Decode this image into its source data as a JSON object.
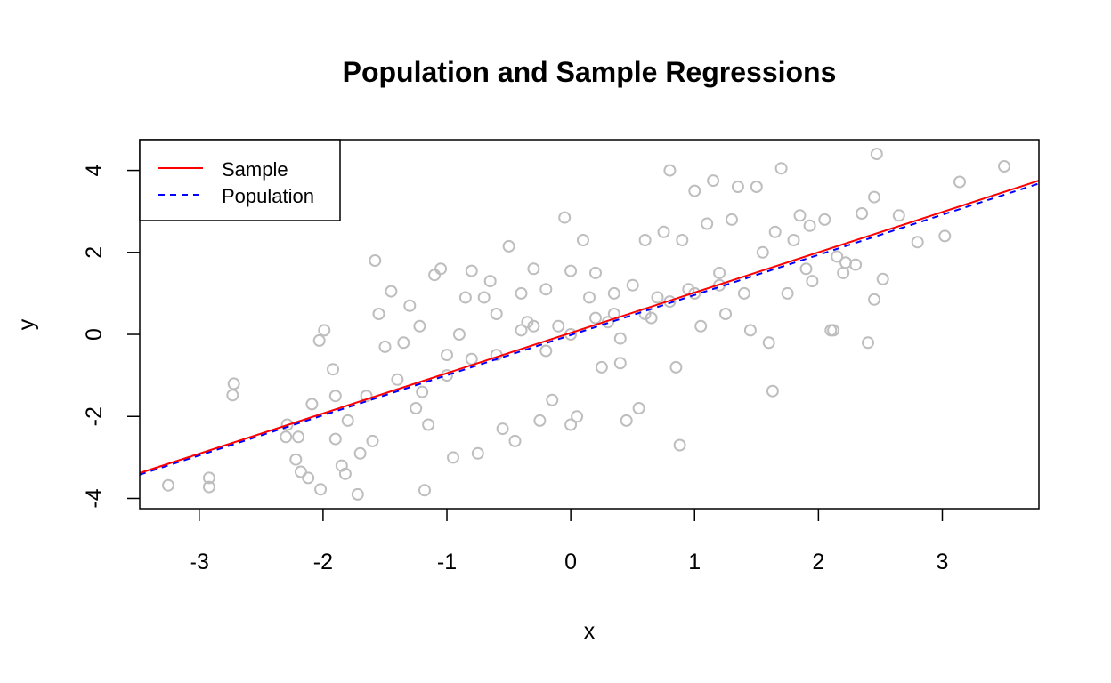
{
  "chart_data": {
    "type": "scatter",
    "title": "Population and Sample Regressions",
    "xlabel": "x",
    "ylabel": "y",
    "xlim": [
      -3.48,
      3.78
    ],
    "ylim": [
      -4.25,
      4.75
    ],
    "x_ticks": [
      -3,
      -2,
      -1,
      0,
      1,
      2,
      3
    ],
    "x_tick_labels": [
      "-3",
      "-2",
      "-1",
      "0",
      "1",
      "2",
      "3"
    ],
    "y_ticks": [
      -4,
      -2,
      0,
      2,
      4
    ],
    "y_tick_labels": [
      "-4",
      "-2",
      "0",
      "2",
      "4"
    ],
    "grid": false,
    "legend_position": "top-left",
    "legend": [
      {
        "label": "Sample",
        "color": "#ff0000",
        "style": "solid"
      },
      {
        "label": "Population",
        "color": "#0000ff",
        "style": "dashed"
      }
    ],
    "point_color": "#bebebe",
    "point_count_approx": 1000,
    "lines": [
      {
        "name": "Sample",
        "color": "#ff0000",
        "style": "solid",
        "points": [
          [
            -3.48,
            -3.38
          ],
          [
            3.78,
            3.75
          ]
        ]
      },
      {
        "name": "Population",
        "color": "#0000ff",
        "style": "dashed",
        "points": [
          [
            -3.48,
            -3.42
          ],
          [
            3.78,
            3.68
          ]
        ]
      }
    ],
    "points": [
      [
        -3.25,
        -3.68
      ],
      [
        -2.92,
        -3.72
      ],
      [
        -2.92,
        -3.5
      ],
      [
        -2.72,
        -1.2
      ],
      [
        -2.73,
        -1.48
      ],
      [
        -2.29,
        -2.2
      ],
      [
        -2.3,
        -2.5
      ],
      [
        -2.22,
        -3.05
      ],
      [
        -2.18,
        -3.35
      ],
      [
        -2.2,
        -2.5
      ],
      [
        -2.12,
        -3.5
      ],
      [
        -2.09,
        -1.7
      ],
      [
        -2.02,
        -3.78
      ],
      [
        -2.03,
        -0.15
      ],
      [
        -1.99,
        0.1
      ],
      [
        -1.92,
        -0.85
      ],
      [
        -1.9,
        -1.5
      ],
      [
        -1.9,
        -2.55
      ],
      [
        -1.85,
        -3.2
      ],
      [
        -1.82,
        -3.4
      ],
      [
        -1.8,
        -2.1
      ],
      [
        -1.72,
        -3.9
      ],
      [
        -1.7,
        -2.9
      ],
      [
        -1.65,
        -1.5
      ],
      [
        -1.6,
        -2.6
      ],
      [
        -1.58,
        1.8
      ],
      [
        -1.55,
        0.5
      ],
      [
        -1.5,
        -0.3
      ],
      [
        -1.45,
        1.05
      ],
      [
        -1.4,
        -1.1
      ],
      [
        -1.35,
        -0.2
      ],
      [
        -1.3,
        0.7
      ],
      [
        -1.25,
        -1.8
      ],
      [
        -1.22,
        0.2
      ],
      [
        -1.18,
        -3.8
      ],
      [
        -1.15,
        -2.2
      ],
      [
        -1.1,
        1.45
      ],
      [
        -1.05,
        1.6
      ],
      [
        -1.0,
        -0.5
      ],
      [
        -0.95,
        -3.0
      ],
      [
        -0.9,
        0.0
      ],
      [
        -0.85,
        0.9
      ],
      [
        -0.8,
        1.55
      ],
      [
        -0.75,
        -2.9
      ],
      [
        -0.7,
        0.9
      ],
      [
        -0.65,
        1.3
      ],
      [
        -0.6,
        0.5
      ],
      [
        -0.55,
        -2.3
      ],
      [
        -0.5,
        2.15
      ],
      [
        -0.45,
        -2.6
      ],
      [
        -0.4,
        1.0
      ],
      [
        -0.35,
        0.3
      ],
      [
        -0.3,
        1.6
      ],
      [
        -0.25,
        -2.1
      ],
      [
        -0.2,
        1.1
      ],
      [
        -0.15,
        -1.6
      ],
      [
        -0.1,
        0.2
      ],
      [
        -0.05,
        2.85
      ],
      [
        0.0,
        1.55
      ],
      [
        0.0,
        -2.2
      ],
      [
        0.05,
        -2.0
      ],
      [
        0.1,
        2.3
      ],
      [
        0.15,
        0.9
      ],
      [
        0.2,
        1.5
      ],
      [
        0.25,
        -0.8
      ],
      [
        0.3,
        0.3
      ],
      [
        0.35,
        1.0
      ],
      [
        0.4,
        -0.7
      ],
      [
        0.45,
        -2.1
      ],
      [
        0.5,
        1.2
      ],
      [
        0.55,
        -1.8
      ],
      [
        0.6,
        2.3
      ],
      [
        0.65,
        0.4
      ],
      [
        0.7,
        0.9
      ],
      [
        0.75,
        2.5
      ],
      [
        0.8,
        4.0
      ],
      [
        0.85,
        -0.8
      ],
      [
        0.88,
        -2.7
      ],
      [
        0.9,
        2.3
      ],
      [
        0.95,
        1.1
      ],
      [
        1.0,
        3.5
      ],
      [
        1.05,
        0.2
      ],
      [
        1.1,
        2.7
      ],
      [
        1.15,
        3.75
      ],
      [
        1.2,
        1.5
      ],
      [
        1.25,
        0.5
      ],
      [
        1.3,
        2.8
      ],
      [
        1.35,
        3.6
      ],
      [
        1.4,
        1.0
      ],
      [
        1.45,
        0.1
      ],
      [
        1.5,
        3.6
      ],
      [
        1.55,
        2.0
      ],
      [
        1.6,
        -0.2
      ],
      [
        1.65,
        2.5
      ],
      [
        1.7,
        4.05
      ],
      [
        1.75,
        1.0
      ],
      [
        1.8,
        2.3
      ],
      [
        1.85,
        2.9
      ],
      [
        1.9,
        1.6
      ],
      [
        1.95,
        1.3
      ],
      [
        2.05,
        2.8
      ],
      [
        2.1,
        0.1
      ],
      [
        2.15,
        1.9
      ],
      [
        2.22,
        1.75
      ],
      [
        2.3,
        1.7
      ],
      [
        2.35,
        2.95
      ],
      [
        2.4,
        -0.2
      ],
      [
        2.45,
        0.85
      ],
      [
        2.47,
        4.4
      ],
      [
        2.52,
        1.35
      ],
      [
        2.65,
        2.9
      ],
      [
        2.8,
        2.25
      ],
      [
        3.02,
        2.4
      ],
      [
        3.14,
        3.72
      ],
      [
        3.5,
        4.1
      ],
      [
        1.63,
        -1.38
      ],
      [
        2.12,
        0.1
      ],
      [
        2.45,
        3.35
      ],
      [
        1.93,
        2.65
      ],
      [
        2.2,
        1.5
      ],
      [
        -0.3,
        0.2
      ],
      [
        0.35,
        0.5
      ],
      [
        -0.6,
        -0.5
      ],
      [
        0.6,
        0.5
      ],
      [
        -1.0,
        -1.0
      ],
      [
        1.0,
        1.0
      ],
      [
        0.0,
        0.0
      ],
      [
        -0.2,
        -0.4
      ],
      [
        0.2,
        0.4
      ],
      [
        -0.8,
        -0.6
      ],
      [
        0.8,
        0.8
      ],
      [
        -1.2,
        -1.4
      ],
      [
        1.2,
        1.2
      ],
      [
        -0.4,
        0.1
      ],
      [
        0.4,
        -0.1
      ]
    ]
  }
}
